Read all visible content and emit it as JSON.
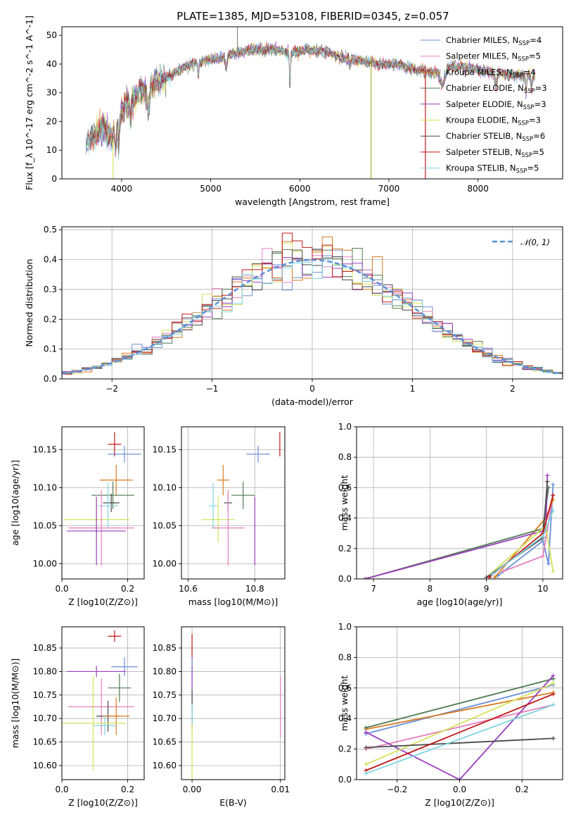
{
  "figure_title": "PLATE=1385, MJD=53108, FIBERID=0345, z=0.057",
  "colors": {
    "Chabrier MILES": "#6a8fd8",
    "Salpeter MILES": "#e47fbf",
    "Kroupa MILES": "#d97a1f",
    "Chabrier ELODIE": "#4f7a50",
    "Salpeter ELODIE": "#9a3fc0",
    "Kroupa ELODIE": "#d4e25a",
    "Chabrier STELIB": "#4a4a4a",
    "Salpeter STELIB": "#c01818",
    "Kroupa STELIB": "#7ed4e0"
  },
  "chart_data": [
    {
      "id": "spectrum",
      "type": "line",
      "title": "PLATE=1385, MJD=53108, FIBERID=0345, z=0.057",
      "xlabel": "wavelength [Angstrom, rest frame]",
      "ylabel": "Flux [f_λ 10^-17 erg cm^-2 s^-1 A^-1]",
      "xlim": [
        3330,
        8950
      ],
      "ylim": [
        0,
        53
      ],
      "xticks": [
        4000,
        5000,
        6000,
        7000,
        8000
      ],
      "yticks": [
        0,
        10,
        20,
        30,
        40,
        50
      ],
      "legend_position": "top-right",
      "series": [
        {
          "name": "Chabrier MILES",
          "nssp": "4"
        },
        {
          "name": "Salpeter MILES",
          "nssp": "5"
        },
        {
          "name": "Kroupa MILES",
          "nssp": "4"
        },
        {
          "name": "Chabrier ELODIE",
          "nssp": "3"
        },
        {
          "name": "Salpeter ELODIE",
          "nssp": "3"
        },
        {
          "name": "Kroupa ELODIE",
          "nssp": "3"
        },
        {
          "name": "Chabrier STELIB",
          "nssp": "6"
        },
        {
          "name": "Salpeter STELIB",
          "nssp": "5"
        },
        {
          "name": "Kroupa STELIB",
          "nssp": "5"
        }
      ],
      "continuum": {
        "x": [
          3600,
          3700,
          3800,
          3900,
          4000,
          4100,
          4200,
          4300,
          4400,
          4500,
          4700,
          4900,
          5100,
          5300,
          5500,
          5700,
          5900,
          6100,
          6300,
          6500,
          6700,
          6900,
          7100,
          7300,
          7500,
          7600,
          7800,
          8000,
          8200,
          8400,
          8640
        ],
        "y": [
          12,
          16,
          17,
          15,
          24,
          27,
          30,
          31,
          34,
          35,
          39,
          41,
          42,
          44,
          45,
          45,
          44,
          45,
          44,
          42,
          41,
          40,
          40,
          38,
          37,
          39,
          39,
          38,
          37,
          36,
          36
        ]
      }
    },
    {
      "id": "residuals",
      "type": "step",
      "xlabel": "(data-model)/error",
      "ylabel": "Normed distribution",
      "xlim": [
        -2.5,
        2.5
      ],
      "ylim": [
        0,
        0.51
      ],
      "xticks": [
        -2,
        -1,
        0,
        1,
        2
      ],
      "yticks": [
        0.0,
        0.1,
        0.2,
        0.3,
        0.4,
        0.5
      ],
      "legend": "𝒩(0, 1)",
      "legend_position": "top-right",
      "bin_width": 0.1,
      "gaussian": {
        "mean": 0,
        "sigma": 1
      }
    },
    {
      "id": "age_vs_Z",
      "type": "scatter",
      "xlabel": "Z [log10(Z/Z⊙)]",
      "ylabel": "age  [log10(age/yr)]",
      "xlim": [
        0.0,
        0.25
      ],
      "ylim": [
        9.98,
        10.18
      ],
      "xticks": [
        0.0,
        0.2
      ],
      "yticks": [
        10.0,
        10.05,
        10.1,
        10.15
      ],
      "points": [
        {
          "s": "Salpeter STELIB",
          "x": 0.16,
          "xerr": 0.02,
          "y": 10.157,
          "yerr": 0.016
        },
        {
          "s": "Chabrier MILES",
          "x": 0.19,
          "xerr": 0.05,
          "y": 10.144,
          "yerr": 0.011
        },
        {
          "s": "Kroupa MILES",
          "x": 0.165,
          "xerr": 0.05,
          "y": 10.11,
          "yerr": 0.02
        },
        {
          "s": "Chabrier ELODIE",
          "x": 0.155,
          "xerr": 0.065,
          "y": 10.09,
          "yerr": 0.018
        },
        {
          "s": "Chabrier STELIB",
          "x": 0.15,
          "xerr": 0.025,
          "y": 10.08,
          "yerr": 0.012
        },
        {
          "s": "Kroupa STELIB",
          "x": 0.14,
          "xerr": 0.03,
          "y": 10.076,
          "yerr": 0.03
        },
        {
          "s": "Kroupa ELODIE",
          "x": 0.105,
          "xerr": 0.1,
          "y": 10.058,
          "yerr": 0.03
        },
        {
          "s": "Salpeter MILES",
          "x": 0.12,
          "xerr": 0.1,
          "y": 10.047,
          "yerr": 0.05
        },
        {
          "s": "Salpeter ELODIE",
          "x": 0.105,
          "xerr": 0.09,
          "y": 10.043,
          "yerr": 0.045
        }
      ]
    },
    {
      "id": "age_vs_mass",
      "type": "scatter",
      "xlabel": "mass [log10(M/M⊙)]",
      "ylabel": "",
      "xlim": [
        10.58,
        10.89
      ],
      "ylim": [
        9.98,
        10.18
      ],
      "xticks": [
        10.6,
        10.8
      ],
      "yticks": [
        10.0,
        10.05,
        10.1,
        10.15
      ],
      "points": [
        {
          "s": "Salpeter STELIB",
          "x": 10.875,
          "xerr": 0.0,
          "y": 10.157,
          "yerr": 0.016
        },
        {
          "s": "Chabrier MILES",
          "x": 10.81,
          "xerr": 0.035,
          "y": 10.144,
          "yerr": 0.011
        },
        {
          "s": "Kroupa MILES",
          "x": 10.705,
          "xerr": 0.018,
          "y": 10.11,
          "yerr": 0.02
        },
        {
          "s": "Chabrier ELODIE",
          "x": 10.765,
          "xerr": 0.035,
          "y": 10.09,
          "yerr": 0.018
        },
        {
          "s": "Chabrier STELIB",
          "x": 10.72,
          "xerr": 0.012,
          "y": 10.08,
          "yerr": 0.012
        },
        {
          "s": "Kroupa STELIB",
          "x": 10.675,
          "xerr": 0.012,
          "y": 10.076,
          "yerr": 0.03
        },
        {
          "s": "Kroupa ELODIE",
          "x": 10.69,
          "xerr": 0.05,
          "y": 10.058,
          "yerr": 0.03
        },
        {
          "s": "Salpeter MILES",
          "x": 10.72,
          "xerr": 0.05,
          "y": 10.047,
          "yerr": 0.05
        },
        {
          "s": "Salpeter ELODIE",
          "x": 10.8,
          "xerr": 0.0,
          "y": 10.043,
          "yerr": 0.045
        }
      ]
    },
    {
      "id": "weight_vs_age",
      "type": "line",
      "xlabel": "age  [log10(age/yr)]",
      "ylabel": "mass weight",
      "xlim": [
        6.7,
        10.35
      ],
      "ylim": [
        0,
        1.0
      ],
      "xticks": [
        7,
        8,
        9,
        10
      ],
      "yticks": [
        0.0,
        0.2,
        0.4,
        0.6,
        0.8,
        1.0
      ],
      "series": [
        {
          "s": "Chabrier MILES",
          "x": [
            9.2,
            10.0,
            10.1,
            10.18
          ],
          "y": [
            0.02,
            0.25,
            0.1,
            0.62
          ]
        },
        {
          "s": "Salpeter MILES",
          "x": [
            9.3,
            10.0,
            10.18
          ],
          "y": [
            0.05,
            0.15,
            0.55
          ]
        },
        {
          "s": "Kroupa MILES",
          "x": [
            9.15,
            10.05,
            10.18
          ],
          "y": [
            0.01,
            0.4,
            0.52
          ]
        },
        {
          "s": "Chabrier ELODIE",
          "x": [
            6.85,
            10.0,
            10.1
          ],
          "y": [
            0.0,
            0.33,
            0.6
          ]
        },
        {
          "s": "Salpeter ELODIE",
          "x": [
            6.85,
            10.05,
            10.08
          ],
          "y": [
            0.0,
            0.32,
            0.68
          ]
        },
        {
          "s": "Kroupa ELODIE",
          "x": [
            9.0,
            10.05,
            10.18
          ],
          "y": [
            0.01,
            0.35,
            0.05
          ]
        },
        {
          "s": "Chabrier STELIB",
          "x": [
            9.0,
            10.0,
            10.08
          ],
          "y": [
            0.01,
            0.27,
            0.64
          ]
        },
        {
          "s": "Salpeter STELIB",
          "x": [
            9.05,
            10.0,
            10.18
          ],
          "y": [
            0.01,
            0.3,
            0.55
          ]
        },
        {
          "s": "Kroupa STELIB",
          "x": [
            9.1,
            10.0,
            10.18
          ],
          "y": [
            0.03,
            0.28,
            0.45
          ]
        }
      ]
    },
    {
      "id": "mass_vs_Z",
      "type": "scatter",
      "xlabel": "Z [log10(Z/Z⊙)]",
      "ylabel": "mass [log10(M/M⊙)]",
      "xlim": [
        0.0,
        0.25
      ],
      "ylim": [
        10.57,
        10.895
      ],
      "xticks": [
        0.0,
        0.2
      ],
      "yticks": [
        10.6,
        10.65,
        10.7,
        10.75,
        10.8,
        10.85
      ],
      "points": [
        {
          "s": "Salpeter STELIB",
          "x": 0.16,
          "xerr": 0.02,
          "y": 10.875,
          "yerr": 0.012
        },
        {
          "s": "Chabrier MILES",
          "x": 0.19,
          "xerr": 0.04,
          "y": 10.81,
          "yerr": 0.02
        },
        {
          "s": "Salpeter ELODIE",
          "x": 0.105,
          "xerr": 0.09,
          "y": 10.8,
          "yerr": 0.012
        },
        {
          "s": "Chabrier ELODIE",
          "x": 0.175,
          "xerr": 0.035,
          "y": 10.765,
          "yerr": 0.03
        },
        {
          "s": "Salpeter MILES",
          "x": 0.12,
          "xerr": 0.1,
          "y": 10.725,
          "yerr": 0.06
        },
        {
          "s": "Chabrier STELIB",
          "x": 0.14,
          "xerr": 0.035,
          "y": 10.705,
          "yerr": 0.033
        },
        {
          "s": "Kroupa MILES",
          "x": 0.165,
          "xerr": 0.04,
          "y": 10.705,
          "yerr": 0.04
        },
        {
          "s": "Kroupa STELIB",
          "x": 0.13,
          "xerr": 0.035,
          "y": 10.685,
          "yerr": 0.02
        },
        {
          "s": "Kroupa ELODIE",
          "x": 0.095,
          "xerr": 0.1,
          "y": 10.69,
          "yerr": 0.1
        }
      ]
    },
    {
      "id": "mass_vs_ebv",
      "type": "scatter",
      "xlabel": "E(B-V)",
      "ylabel": "",
      "xlim": [
        -0.0012,
        0.0105
      ],
      "ylim": [
        10.57,
        10.895
      ],
      "xticks": [
        0.0,
        0.01
      ],
      "yticks": [
        10.6,
        10.65,
        10.7,
        10.75,
        10.8,
        10.85
      ],
      "points": [
        {
          "s": "Salpeter STELIB",
          "x": 0.0,
          "xerr": 0,
          "y": 10.845,
          "yerr": 0.035
        },
        {
          "s": "Chabrier MILES",
          "x": 0.0,
          "xerr": 0,
          "y": 10.8,
          "yerr": 0.03
        },
        {
          "s": "Salpeter ELODIE",
          "x": 0.0,
          "xerr": 0,
          "y": 10.77,
          "yerr": 0.04
        },
        {
          "s": "Chabrier STELIB",
          "x": 0.0,
          "xerr": 0,
          "y": 10.72,
          "yerr": 0.04
        },
        {
          "s": "Kroupa STELIB",
          "x": 0.0,
          "xerr": 0,
          "y": 10.7,
          "yerr": 0.03
        },
        {
          "s": "Kroupa ELODIE",
          "x": 0.0,
          "xerr": 0,
          "y": 10.63,
          "yerr": 0.06
        },
        {
          "s": "Salpeter MILES",
          "x": 0.01,
          "xerr": 0,
          "y": 10.725,
          "yerr": 0.065
        }
      ]
    },
    {
      "id": "weight_vs_Z",
      "type": "line",
      "xlabel": "Z [log10(Z/Z⊙)]",
      "ylabel": "mass weight",
      "xlim": [
        -0.33,
        0.33
      ],
      "ylim": [
        0,
        1.0
      ],
      "xticks": [
        -0.2,
        0.0,
        0.2
      ],
      "yticks": [
        0.0,
        0.2,
        0.4,
        0.6,
        0.8,
        1.0
      ],
      "series": [
        {
          "s": "Chabrier MILES",
          "x": [
            -0.3,
            0.3
          ],
          "y": [
            0.3,
            0.62
          ]
        },
        {
          "s": "Salpeter MILES",
          "x": [
            -0.3,
            0.3
          ],
          "y": [
            0.2,
            0.49
          ]
        },
        {
          "s": "Kroupa MILES",
          "x": [
            -0.3,
            0.3
          ],
          "y": [
            0.33,
            0.57
          ]
        },
        {
          "s": "Chabrier ELODIE",
          "x": [
            -0.3,
            0.3
          ],
          "y": [
            0.34,
            0.66
          ]
        },
        {
          "s": "Salpeter ELODIE",
          "x": [
            -0.3,
            0.0,
            0.3
          ],
          "y": [
            0.31,
            0.0,
            0.68
          ]
        },
        {
          "s": "Kroupa ELODIE",
          "x": [
            -0.3,
            0.3
          ],
          "y": [
            0.1,
            0.63
          ]
        },
        {
          "s": "Chabrier STELIB",
          "x": [
            -0.3,
            0.3
          ],
          "y": [
            0.21,
            0.27
          ]
        },
        {
          "s": "Salpeter STELIB",
          "x": [
            -0.3,
            0.3
          ],
          "y": [
            0.06,
            0.56
          ]
        },
        {
          "s": "Kroupa STELIB",
          "x": [
            -0.3,
            0.3
          ],
          "y": [
            0.04,
            0.49
          ]
        }
      ]
    }
  ]
}
